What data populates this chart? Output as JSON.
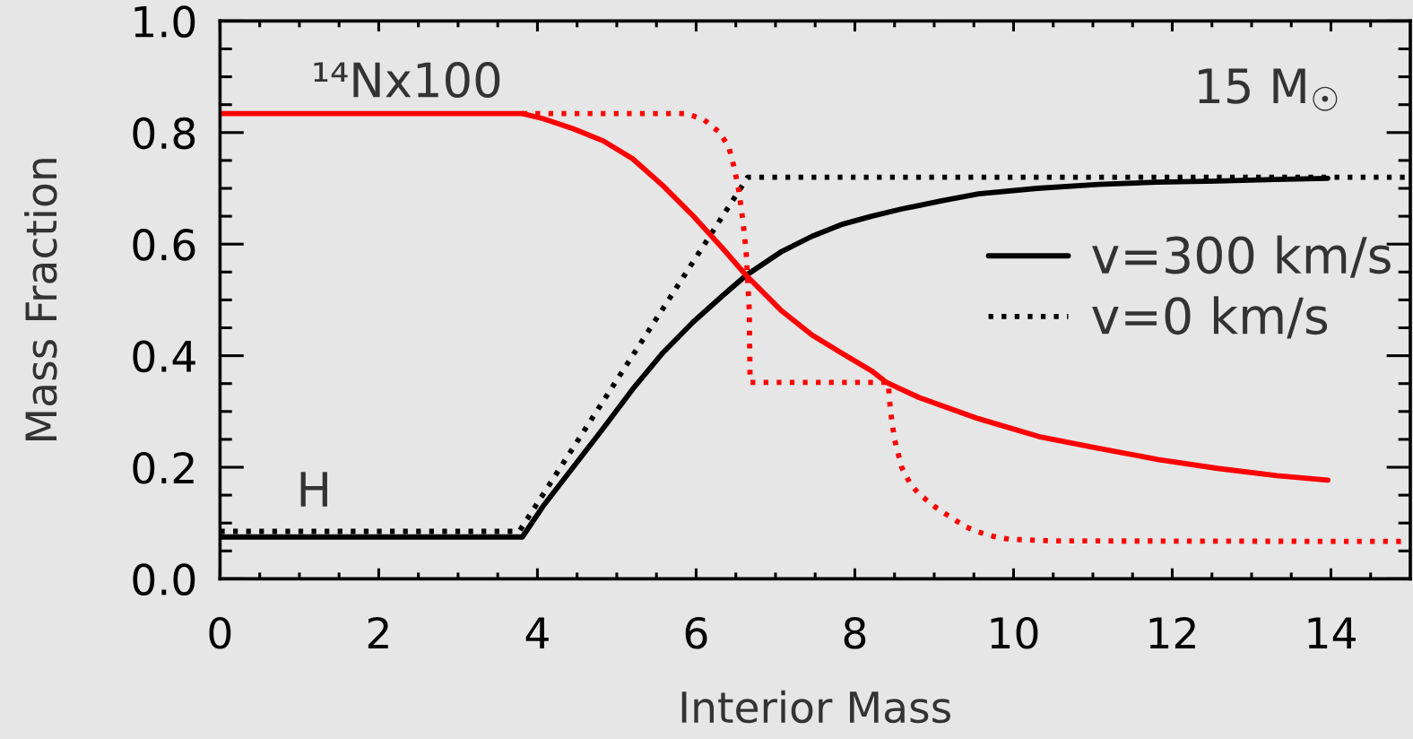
{
  "chart_data": {
    "type": "line",
    "xlabel": "Interior Mass",
    "ylabel": "Mass Fraction",
    "xlim": [
      0,
      15
    ],
    "ylim": [
      0,
      1
    ],
    "xticks": [
      0,
      {
        "value": 0.5,
        "label": null
      },
      {
        "value": 1,
        "label": null
      },
      {
        "value": 1.5,
        "label": null
      },
      2,
      {
        "value": 2.5,
        "label": null
      },
      {
        "value": 3,
        "label": null
      },
      {
        "value": 3.5,
        "label": null
      },
      4,
      {
        "value": 4.5,
        "label": null
      },
      {
        "value": 5,
        "label": null
      },
      {
        "value": 5.5,
        "label": null
      },
      6,
      {
        "value": 6.5,
        "label": null
      },
      {
        "value": 7,
        "label": null
      },
      {
        "value": 7.5,
        "label": null
      },
      8,
      {
        "value": 8.5,
        "label": null
      },
      {
        "value": 9,
        "label": null
      },
      {
        "value": 9.5,
        "label": null
      },
      10,
      {
        "value": 10.5,
        "label": null
      },
      {
        "value": 11,
        "label": null
      },
      {
        "value": 11.5,
        "label": null
      },
      12,
      {
        "value": 12.5,
        "label": null
      },
      {
        "value": 13,
        "label": null
      },
      {
        "value": 13.5,
        "label": null
      },
      14,
      {
        "value": 14.5,
        "label": null
      }
    ],
    "yticks": [
      {
        "value": 0,
        "label": "0.0"
      },
      {
        "value": 0.05,
        "label": null
      },
      {
        "value": 0.1,
        "label": null
      },
      {
        "value": 0.15,
        "label": null
      },
      0.2,
      {
        "value": 0.25,
        "label": null
      },
      {
        "value": 0.3,
        "label": null
      },
      {
        "value": 0.35,
        "label": null
      },
      0.4,
      {
        "value": 0.45,
        "label": null
      },
      {
        "value": 0.5,
        "label": null
      },
      {
        "value": 0.55,
        "label": null
      },
      0.6,
      {
        "value": 0.65,
        "label": null
      },
      {
        "value": 0.7,
        "label": null
      },
      {
        "value": 0.75,
        "label": null
      },
      0.8,
      {
        "value": 0.85,
        "label": null
      },
      {
        "value": 0.9,
        "label": null
      },
      {
        "value": 0.95,
        "label": null
      },
      {
        "value": 1,
        "label": "1.0"
      }
    ],
    "legend": "right",
    "series": [
      {
        "name": "v=300 km/s",
        "color": "#000000",
        "line_style": "solid",
        "x": [
          0,
          3.81,
          4.07,
          4.45,
          4.83,
          5.2,
          5.58,
          5.96,
          6.33,
          6.63,
          7.08,
          7.46,
          7.83,
          8.21,
          8.59,
          9.11,
          9.56,
          10.3,
          11.07,
          11.8,
          12.57,
          13.3,
          13.96
        ],
        "values": [
          0.075,
          0.075,
          0.13,
          0.2,
          0.27,
          0.34,
          0.405,
          0.46,
          0.507,
          0.544,
          0.587,
          0.614,
          0.635,
          0.65,
          0.663,
          0.678,
          0.69,
          0.7,
          0.707,
          0.711,
          0.713,
          0.716,
          0.718
        ]
      },
      {
        "name": "v=0 km/s",
        "color": "#000000",
        "line_style": "dotted",
        "x": [
          0,
          3.77,
          6.65,
          15
        ],
        "values": [
          0.085,
          0.085,
          0.72,
          0.72
        ]
      },
      {
        "color": "#ff0000",
        "line_style": "solid",
        "x": [
          0,
          3.81,
          4.07,
          4.45,
          4.83,
          5.2,
          5.58,
          5.96,
          6.33,
          6.63,
          7.08,
          7.46,
          7.83,
          8.21,
          8.4,
          8.81,
          9.56,
          10.32,
          11.07,
          11.82,
          12.57,
          13.32,
          13.96
        ],
        "values": [
          0.834,
          0.834,
          0.825,
          0.807,
          0.785,
          0.753,
          0.705,
          0.651,
          0.593,
          0.544,
          0.48,
          0.437,
          0.405,
          0.373,
          0.352,
          0.325,
          0.287,
          0.255,
          0.234,
          0.214,
          0.198,
          0.185,
          0.177
        ]
      },
      {
        "color": "#ff0000",
        "line_style": "dotted",
        "x": [
          3.81,
          5.88,
          6.1,
          6.29,
          6.41,
          6.48,
          6.54,
          6.59,
          6.63,
          6.67,
          6.68,
          8.42,
          8.45,
          8.5,
          8.59,
          8.7,
          8.81,
          9.0,
          9.19,
          9.4,
          9.56,
          9.75,
          9.94,
          10.5,
          15
        ],
        "values": [
          0.834,
          0.834,
          0.823,
          0.801,
          0.775,
          0.737,
          0.694,
          0.641,
          0.587,
          0.48,
          0.352,
          0.352,
          0.3,
          0.25,
          0.2,
          0.17,
          0.152,
          0.13,
          0.112,
          0.093,
          0.084,
          0.076,
          0.071,
          0.068,
          0.067
        ]
      }
    ],
    "annotations": [
      "¹⁴Nx100",
      "H",
      "15 M$_{☉}$"
    ]
  }
}
